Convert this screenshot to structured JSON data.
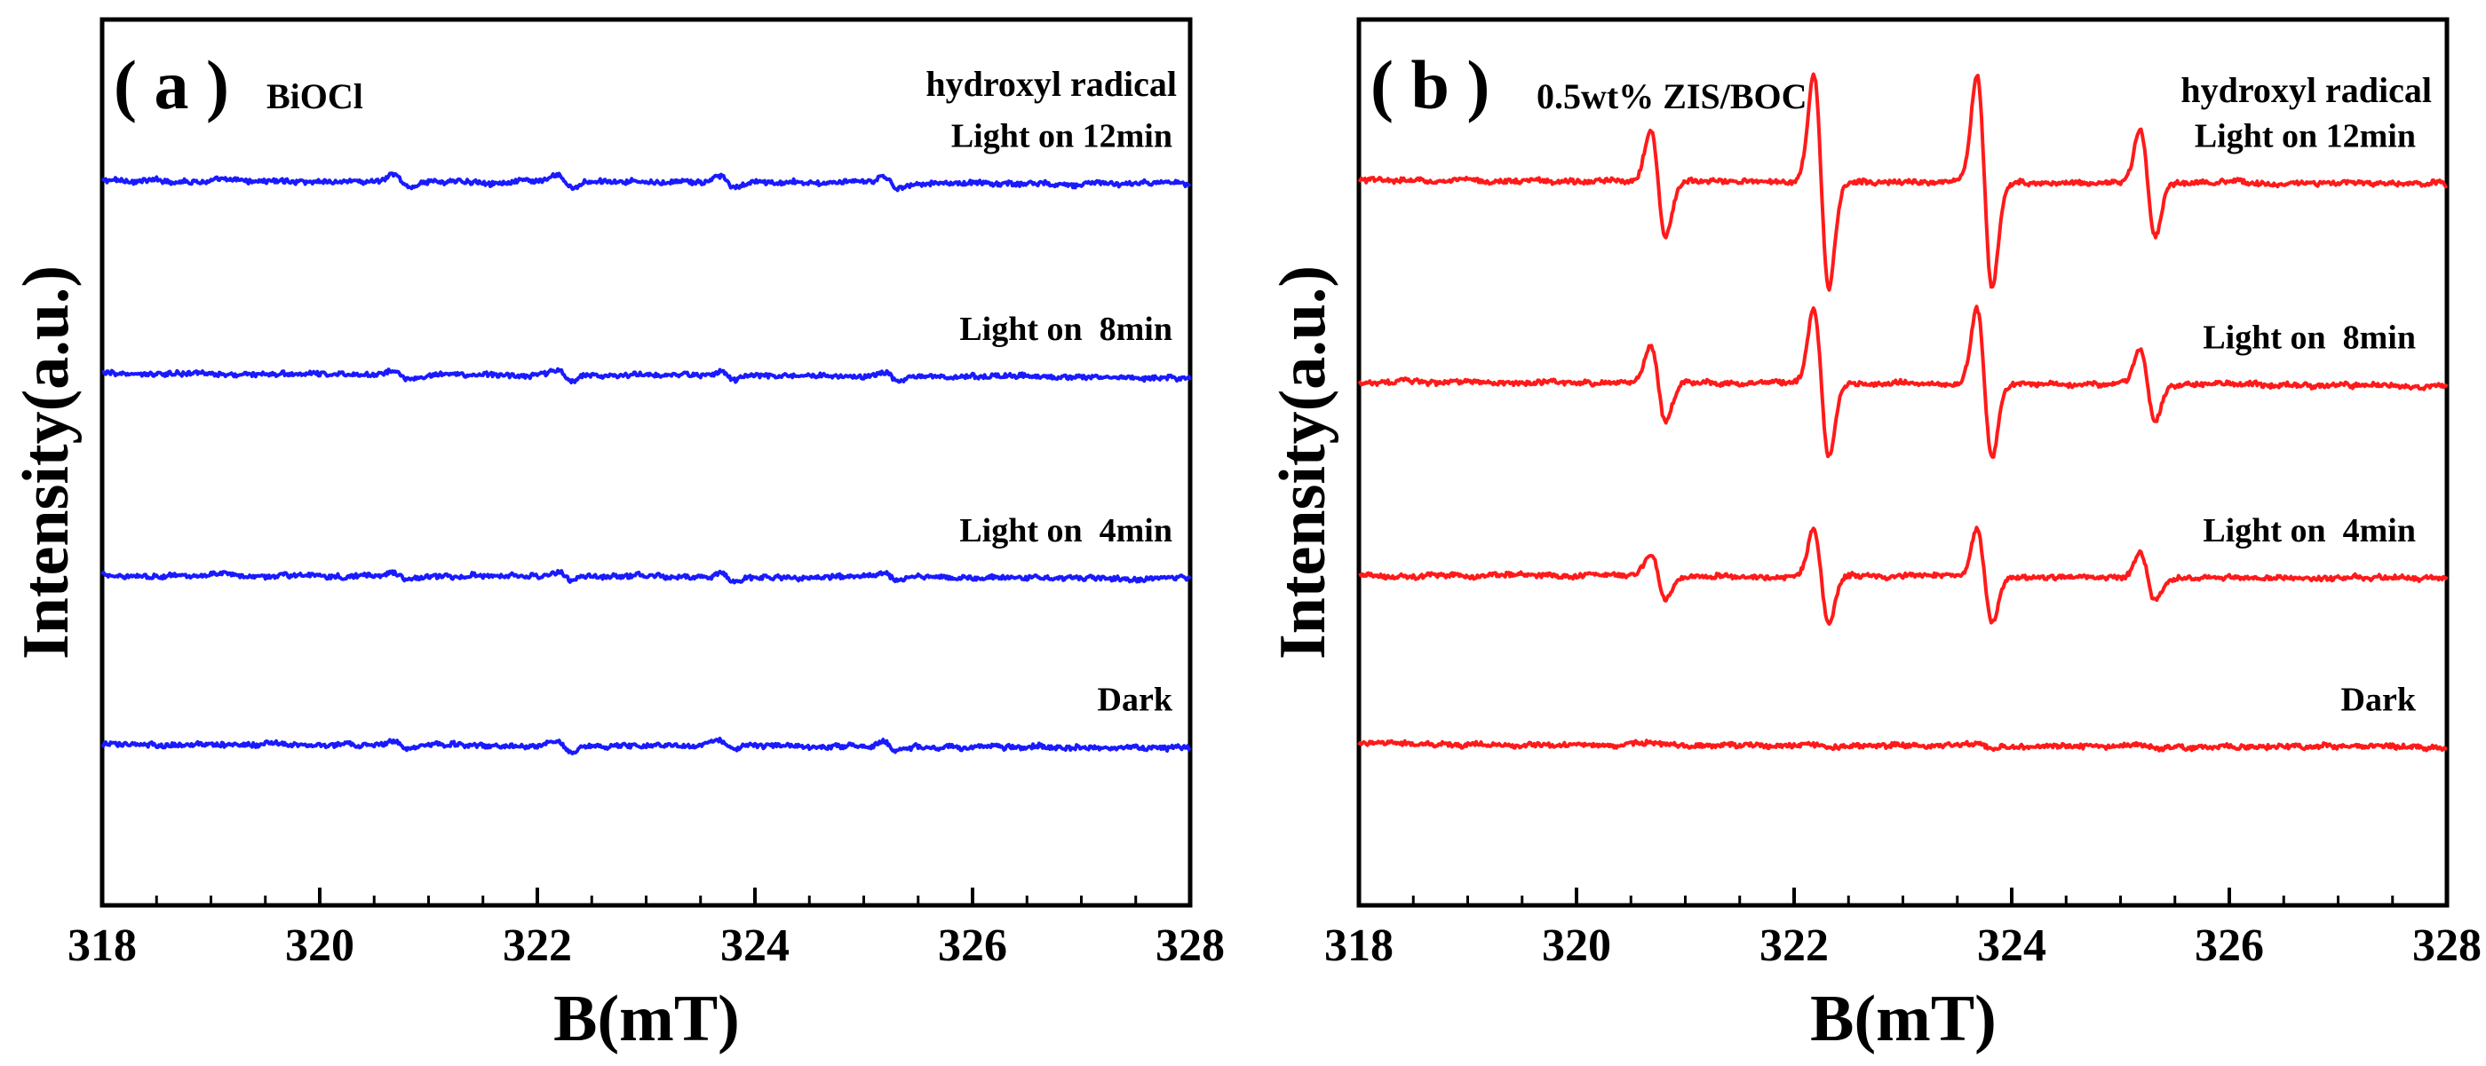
{
  "chart_data": [
    {
      "type": "line",
      "panel_label": "( a )",
      "sample_label": "BiOCl",
      "corner_label": "hydroxyl radical",
      "xlabel": "B(mT)",
      "ylabel": "Intensity(a.u.)",
      "xlim": [
        318,
        328
      ],
      "ylim": [
        -0.5,
        5.0
      ],
      "xticks": [
        "318",
        "320",
        "322",
        "324",
        "326",
        "328"
      ],
      "line_color": "#1a1aff",
      "peaks": [
        320.75,
        322.25,
        323.75,
        325.25
      ],
      "series": [
        {
          "name": "Light on 12min",
          "offset": 4.0,
          "amplitude": 0.06
        },
        {
          "name": "Light on  8min",
          "offset": 2.8,
          "amplitude": 0.05
        },
        {
          "name": "Light on  4min",
          "offset": 1.55,
          "amplitude": 0.04
        },
        {
          "name": "Dark",
          "offset": 0.5,
          "amplitude": 0.05
        }
      ]
    },
    {
      "type": "line",
      "panel_label": "( b )",
      "sample_label": "0.5wt% ZIS/BOC",
      "corner_label": "hydroxyl radical",
      "xlabel": "B(mT)",
      "ylabel": "Intensity(a.u.)",
      "xlim": [
        318,
        328
      ],
      "ylim": [
        -0.5,
        5.0
      ],
      "xticks": [
        "318",
        "320",
        "322",
        "324",
        "326",
        "328"
      ],
      "line_color": "#ff1a1a",
      "peaks": [
        320.75,
        322.25,
        323.75,
        325.25
      ],
      "series": [
        {
          "name": "Light on 12min",
          "offset": 4.0,
          "amplitude": 0.55,
          "peak_ratios": [
            1,
            2,
            2,
            1
          ]
        },
        {
          "name": "Light on  8min",
          "offset": 2.75,
          "amplitude": 0.38,
          "peak_ratios": [
            1,
            2,
            2,
            1
          ]
        },
        {
          "name": "Light on  4min",
          "offset": 1.55,
          "amplitude": 0.24,
          "peak_ratios": [
            1,
            2,
            2,
            1
          ]
        },
        {
          "name": "Dark",
          "offset": 0.5,
          "amplitude": 0.02,
          "peak_ratios": [
            1,
            1,
            1,
            1
          ]
        }
      ]
    }
  ]
}
